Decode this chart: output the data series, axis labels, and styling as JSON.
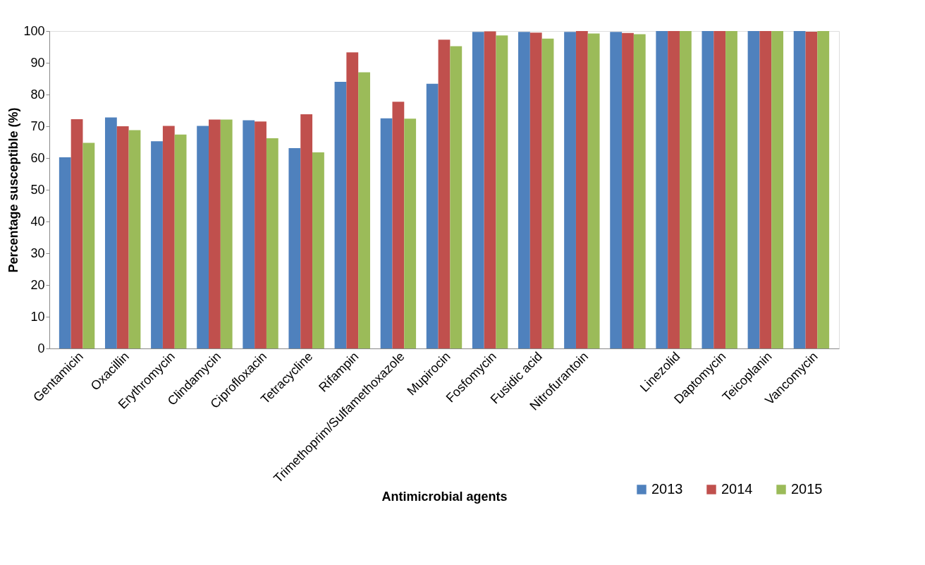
{
  "chart_data": {
    "type": "bar",
    "xlabel": "Antimicrobial agents",
    "ylabel": "Percentage susceptible (%)",
    "categories": [
      "Gentamicin",
      "Oxacillin",
      "Erythromycin",
      "Clindamycin",
      "Ciprofloxacin",
      "Tetracycline",
      "Rifampin",
      "Trimethoprim/Sulfamethoxazole",
      "Mupirocin",
      "Fosfomycin",
      "Fusidic acid",
      "Nitrofurantoin",
      null,
      "Linezolid",
      "Daptomycin",
      "Teicoplanin",
      "Vancomycin"
    ],
    "series": [
      {
        "name": "2013",
        "color": "#4f81bd",
        "values": [
          60.2,
          72.8,
          65.3,
          70.1,
          71.9,
          63.1,
          84.0,
          72.5,
          83.4,
          99.7,
          99.7,
          99.7,
          99.7,
          100,
          100,
          100,
          100
        ]
      },
      {
        "name": "2014",
        "color": "#c0504d",
        "values": [
          72.2,
          70.0,
          70.1,
          72.1,
          71.5,
          73.8,
          93.3,
          77.7,
          97.3,
          99.9,
          99.5,
          100,
          99.4,
          100,
          100,
          100,
          99.8
        ]
      },
      {
        "name": "2015",
        "color": "#9bbb59",
        "values": [
          64.8,
          68.8,
          67.4,
          72.1,
          66.2,
          61.8,
          87.0,
          72.4,
          95.2,
          98.6,
          97.6,
          99.2,
          99.0,
          100,
          100,
          100,
          100
        ]
      }
    ],
    "ylim": [
      0,
      100
    ],
    "yticks": [
      0,
      10,
      20,
      30,
      40,
      50,
      60,
      70,
      80,
      90,
      100
    ],
    "grid": false,
    "legend": "bottom right"
  }
}
